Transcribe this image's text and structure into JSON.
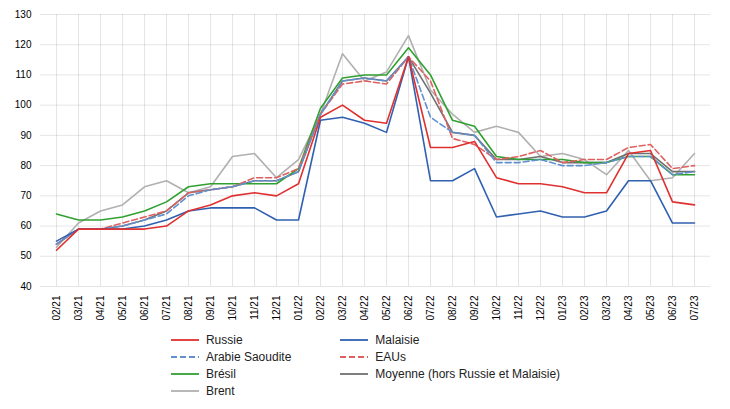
{
  "chart_data": {
    "type": "line",
    "categories": [
      "02/21",
      "03/21",
      "04/21",
      "05/21",
      "06/21",
      "07/21",
      "08/21",
      "09/21",
      "10/21",
      "11/21",
      "12/21",
      "01/22",
      "02/22",
      "03/22",
      "04/22",
      "05/22",
      "06/22",
      "07/22",
      "08/22",
      "09/22",
      "10/22",
      "11/22",
      "12/22",
      "01/23",
      "02/23",
      "03/23",
      "04/23",
      "05/23",
      "06/23",
      "07/23"
    ],
    "series": [
      {
        "name": "Russie",
        "color": "#e03030",
        "line_style": "solid",
        "values": [
          52,
          59,
          59,
          59,
          59,
          60,
          65,
          67,
          70,
          71,
          70,
          74,
          96,
          100,
          95,
          94,
          116,
          86,
          86,
          88,
          76,
          74,
          74,
          73,
          71,
          71,
          84,
          85,
          68,
          67
        ]
      },
      {
        "name": "Malaisie",
        "color": "#3060b0",
        "line_style": "solid",
        "values": [
          55,
          59,
          59,
          59,
          60,
          62,
          65,
          66,
          66,
          66,
          62,
          62,
          95,
          96,
          94,
          91,
          116,
          75,
          75,
          79,
          63,
          64,
          65,
          63,
          63,
          65,
          75,
          75,
          61,
          61
        ]
      },
      {
        "name": "Arabie Saoudite",
        "color": "#6090d0",
        "line_style": "dashed",
        "values": [
          54,
          59,
          59,
          60,
          62,
          64,
          70,
          72,
          73,
          75,
          75,
          78,
          97,
          108,
          109,
          108,
          116,
          96,
          91,
          90,
          81,
          81,
          82,
          80,
          80,
          81,
          83,
          83,
          77,
          78
        ]
      },
      {
        "name": "EAUs",
        "color": "#e06060",
        "line_style": "dashed",
        "values": [
          54,
          59,
          59,
          61,
          63,
          65,
          71,
          72,
          73,
          76,
          76,
          79,
          97,
          107,
          108,
          107,
          116,
          108,
          89,
          87,
          82,
          83,
          85,
          81,
          82,
          82,
          86,
          87,
          79,
          80
        ]
      },
      {
        "name": "Brésil",
        "color": "#30a030",
        "line_style": "solid",
        "values": [
          64,
          62,
          62,
          63,
          65,
          68,
          73,
          74,
          74,
          74,
          74,
          79,
          99,
          109,
          110,
          110,
          119,
          110,
          95,
          93,
          83,
          82,
          82,
          82,
          81,
          81,
          83,
          83,
          77,
          77
        ]
      },
      {
        "name": "Moyenne (hors Russie et Malaisie)",
        "color": "#707070",
        "line_style": "solid",
        "values": [
          54,
          59,
          59,
          60,
          62,
          65,
          71,
          72,
          73,
          75,
          75,
          78,
          97,
          108,
          109,
          108,
          116,
          104,
          91,
          90,
          82,
          82,
          83,
          81,
          81,
          81,
          84,
          84,
          78,
          78
        ]
      },
      {
        "name": "Brent",
        "color": "#b0b0b0",
        "line_style": "solid",
        "values": [
          53,
          61,
          65,
          67,
          73,
          75,
          71,
          73,
          83,
          84,
          76,
          82,
          97,
          117,
          108,
          111,
          123,
          105,
          97,
          91,
          93,
          91,
          83,
          84,
          82,
          77,
          85,
          75,
          76,
          84
        ]
      }
    ],
    "ylim": [
      40,
      130
    ],
    "yticks": [
      40,
      50,
      60,
      70,
      80,
      90,
      100,
      110,
      120,
      130
    ],
    "grid": true,
    "legend": "bottom"
  }
}
